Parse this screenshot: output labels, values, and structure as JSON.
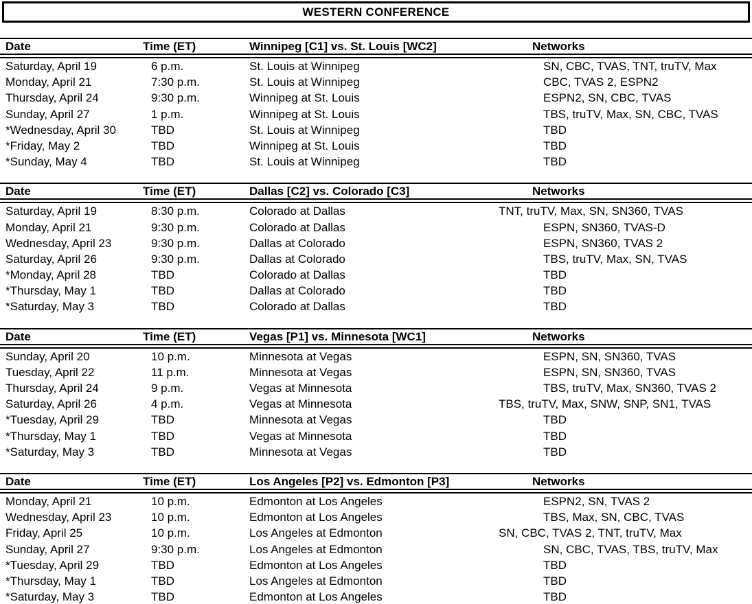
{
  "title": "WESTERN CONFERENCE",
  "tables": [
    {
      "headers": {
        "date": "Date",
        "time": "Time (ET)",
        "matchup": "Winnipeg [C1] vs. St. Louis [WC2]",
        "networks": "Networks"
      },
      "rows": [
        {
          "date": "Saturday, April 19",
          "time": "6 p.m.",
          "matchup": "St. Louis at Winnipeg",
          "networks": "SN, CBC, TVAS, TNT, truTV, Max"
        },
        {
          "date": "Monday, April 21",
          "time": "7:30 p.m.",
          "matchup": "St. Louis at Winnipeg",
          "networks": "CBC, TVAS 2, ESPN2"
        },
        {
          "date": "Thursday, April 24",
          "time": "9:30 p.m.",
          "matchup": "Winnipeg at St. Louis",
          "networks": "ESPN2, SN, CBC, TVAS"
        },
        {
          "date": "Sunday, April 27",
          "time": "1 p.m.",
          "matchup": "Winnipeg at St. Louis",
          "networks": "TBS, truTV, Max, SN, CBC, TVAS"
        },
        {
          "date": "*Wednesday, April 30",
          "time": "TBD",
          "matchup": "St. Louis at Winnipeg",
          "networks": "TBD"
        },
        {
          "date": "*Friday, May 2",
          "time": "TBD",
          "matchup": "Winnipeg at St. Louis",
          "networks": "TBD"
        },
        {
          "date": "*Sunday, May 4",
          "time": "TBD",
          "matchup": "St. Louis at Winnipeg",
          "networks": "TBD"
        }
      ]
    },
    {
      "headers": {
        "date": "Date",
        "time": "Time (ET)",
        "matchup": "Dallas [C2] vs. Colorado [C3]",
        "networks": "Networks"
      },
      "rows": [
        {
          "date": "Saturday, April 19",
          "time": "8:30 p.m.",
          "matchup": "Colorado at Dallas",
          "networks": "TNT, truTV, Max, SN, SN360, TVAS"
        },
        {
          "date": "Monday, April 21",
          "time": "9:30 p.m.",
          "matchup": "Colorado at Dallas",
          "networks": "ESPN, SN360, TVAS-D"
        },
        {
          "date": "Wednesday, April 23",
          "time": "9:30 p.m.",
          "matchup": "Dallas at Colorado",
          "networks": "ESPN, SN360, TVAS 2"
        },
        {
          "date": "Saturday, April 26",
          "time": "9:30 p.m.",
          "matchup": "Dallas at Colorado",
          "networks": "TBS, truTV, Max, SN, TVAS"
        },
        {
          "date": "*Monday, April 28",
          "time": "TBD",
          "matchup": "Colorado at Dallas",
          "networks": "TBD"
        },
        {
          "date": "*Thursday, May 1",
          "time": "TBD",
          "matchup": "Dallas at Colorado",
          "networks": "TBD"
        },
        {
          "date": "*Saturday, May 3",
          "time": "TBD",
          "matchup": "Colorado at Dallas",
          "networks": "TBD"
        }
      ]
    },
    {
      "headers": {
        "date": "Date",
        "time": "Time (ET)",
        "matchup": "Vegas [P1] vs. Minnesota [WC1]",
        "networks": "Networks"
      },
      "rows": [
        {
          "date": "Sunday, April 20",
          "time": "10 p.m.",
          "matchup": "Minnesota at Vegas",
          "networks": "ESPN, SN, SN360, TVAS"
        },
        {
          "date": "Tuesday, April 22",
          "time": "11 p.m.",
          "matchup": "Minnesota at Vegas",
          "networks": "ESPN, SN, SN360, TVAS"
        },
        {
          "date": "Thursday, April 24",
          "time": "9 p.m.",
          "matchup": "Vegas at Minnesota",
          "networks": "TBS, truTV, Max, SN360, TVAS 2"
        },
        {
          "date": "Saturday, April 26",
          "time": "4 p.m.",
          "matchup": "Vegas at Minnesota",
          "networks": "TBS, truTV, Max, SNW, SNP, SN1, TVAS"
        },
        {
          "date": "*Tuesday, April 29",
          "time": "TBD",
          "matchup": "Minnesota at Vegas",
          "networks": "TBD"
        },
        {
          "date": "*Thursday, May 1",
          "time": "TBD",
          "matchup": "Vegas at Minnesota",
          "networks": "TBD"
        },
        {
          "date": "*Saturday, May 3",
          "time": "TBD",
          "matchup": "Minnesota at Vegas",
          "networks": "TBD"
        }
      ]
    },
    {
      "headers": {
        "date": "Date",
        "time": "Time (ET)",
        "matchup": "Los Angeles [P2] vs. Edmonton [P3]",
        "networks": "Networks"
      },
      "rows": [
        {
          "date": "Monday, April 21",
          "time": "10 p.m.",
          "matchup": "Edmonton at Los Angeles",
          "networks": "ESPN2, SN, TVAS 2"
        },
        {
          "date": "Wednesday, April 23",
          "time": "10 p.m.",
          "matchup": "Edmonton at Los Angeles",
          "networks": "TBS, Max, SN, CBC, TVAS"
        },
        {
          "date": "Friday, April 25",
          "time": "10 p.m.",
          "matchup": "Los Angeles at Edmonton",
          "networks": "SN, CBC, TVAS 2, TNT, truTV, Max"
        },
        {
          "date": "Sunday, April 27",
          "time": "9:30 p.m.",
          "matchup": "Los Angeles at Edmonton",
          "networks": "SN, CBC, TVAS, TBS, truTV, Max"
        },
        {
          "date": "*Tuesday, April 29",
          "time": "TBD",
          "matchup": "Edmonton at Los Angeles",
          "networks": "TBD"
        },
        {
          "date": "*Thursday, May 1",
          "time": "TBD",
          "matchup": "Los Angeles at Edmonton",
          "networks": "TBD"
        },
        {
          "date": "*Saturday, May 3",
          "time": "TBD",
          "matchup": "Edmonton at Los Angeles",
          "networks": "TBD"
        }
      ]
    }
  ]
}
